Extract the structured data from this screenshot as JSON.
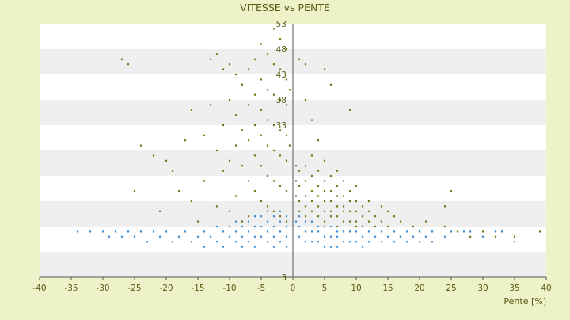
{
  "colors": {
    "background": "#eef2c9",
    "plot_band_light": "#ffffff",
    "plot_band_dark": "#efefef",
    "axis": "#555555",
    "text": "#5a5a14",
    "series_olive": "#6b7a14",
    "series_blue": "#3b8fd6"
  },
  "chart_data": {
    "type": "scatter",
    "title": "VITESSE vs PENTE",
    "xlabel": "Pente [%]",
    "ylabel": "",
    "xlim": [
      -40,
      40
    ],
    "ylim": [
      3,
      53
    ],
    "x_ticks": [
      -40,
      -35,
      -30,
      -25,
      -20,
      -15,
      -10,
      -5,
      0,
      5,
      10,
      15,
      20,
      25,
      30,
      35,
      40
    ],
    "y_ticks": [
      3,
      8,
      13,
      18,
      23,
      28,
      33,
      38,
      43,
      48,
      53
    ],
    "y_tick_labels_shown": [
      3,
      33,
      38,
      43,
      48,
      53
    ],
    "grid": "horizontal-bands",
    "legend": "none",
    "series": [
      {
        "color": "olive",
        "points": [
          [
            -27,
            46
          ],
          [
            -26,
            45
          ],
          [
            -25,
            20
          ],
          [
            -24,
            29
          ],
          [
            -22,
            27
          ],
          [
            -21,
            16
          ],
          [
            -20,
            26
          ],
          [
            -19,
            24
          ],
          [
            -18,
            20
          ],
          [
            -17,
            30
          ],
          [
            -16,
            36
          ],
          [
            -16,
            18
          ],
          [
            -15,
            14
          ],
          [
            -14,
            31
          ],
          [
            -14,
            22
          ],
          [
            -13,
            46
          ],
          [
            -13,
            37
          ],
          [
            -12,
            47
          ],
          [
            -12,
            28
          ],
          [
            -12,
            17
          ],
          [
            -11,
            44
          ],
          [
            -11,
            33
          ],
          [
            -11,
            24
          ],
          [
            -10,
            45
          ],
          [
            -10,
            38
          ],
          [
            -10,
            26
          ],
          [
            -10,
            16
          ],
          [
            -9,
            43
          ],
          [
            -9,
            35
          ],
          [
            -9,
            29
          ],
          [
            -9,
            19
          ],
          [
            -8,
            41
          ],
          [
            -8,
            32
          ],
          [
            -8,
            25
          ],
          [
            -8,
            14
          ],
          [
            -7,
            44
          ],
          [
            -7,
            37
          ],
          [
            -7,
            30
          ],
          [
            -7,
            22
          ],
          [
            -7,
            15
          ],
          [
            -6,
            46
          ],
          [
            -6,
            39
          ],
          [
            -6,
            33
          ],
          [
            -6,
            27
          ],
          [
            -6,
            20
          ],
          [
            -5,
            49
          ],
          [
            -5,
            42
          ],
          [
            -5,
            36
          ],
          [
            -5,
            31
          ],
          [
            -5,
            25
          ],
          [
            -5,
            18
          ],
          [
            -4,
            47
          ],
          [
            -4,
            40
          ],
          [
            -4,
            34
          ],
          [
            -4,
            29
          ],
          [
            -4,
            23
          ],
          [
            -4,
            17
          ],
          [
            -3,
            52
          ],
          [
            -3,
            45
          ],
          [
            -3,
            39
          ],
          [
            -3,
            33
          ],
          [
            -3,
            28
          ],
          [
            -3,
            22
          ],
          [
            -3,
            16
          ],
          [
            -2,
            50
          ],
          [
            -2,
            44
          ],
          [
            -2,
            38
          ],
          [
            -2,
            32
          ],
          [
            -2,
            27
          ],
          [
            -2,
            21
          ],
          [
            -2,
            15
          ],
          [
            -1,
            48
          ],
          [
            -1,
            42
          ],
          [
            -1,
            37
          ],
          [
            -1,
            31
          ],
          [
            -1,
            26
          ],
          [
            -1,
            20
          ],
          [
            -1,
            14
          ],
          [
            -0.5,
            40
          ],
          [
            -0.5,
            29
          ],
          [
            0.5,
            25
          ],
          [
            0.5,
            22
          ],
          [
            0.5,
            19
          ],
          [
            1,
            46
          ],
          [
            1,
            24
          ],
          [
            1,
            21
          ],
          [
            1,
            18
          ],
          [
            1,
            16
          ],
          [
            2,
            45
          ],
          [
            2,
            38
          ],
          [
            2,
            25
          ],
          [
            2,
            22
          ],
          [
            2,
            19
          ],
          [
            2,
            17
          ],
          [
            2,
            15
          ],
          [
            3,
            34
          ],
          [
            3,
            27
          ],
          [
            3,
            23
          ],
          [
            3,
            20
          ],
          [
            3,
            18
          ],
          [
            3,
            16
          ],
          [
            3,
            14
          ],
          [
            4,
            30
          ],
          [
            4,
            24
          ],
          [
            4,
            21
          ],
          [
            4,
            19
          ],
          [
            4,
            17
          ],
          [
            4,
            15
          ],
          [
            5,
            44
          ],
          [
            5,
            26
          ],
          [
            5,
            22
          ],
          [
            5,
            20
          ],
          [
            5,
            18
          ],
          [
            5,
            16
          ],
          [
            5,
            14
          ],
          [
            6,
            41
          ],
          [
            6,
            23
          ],
          [
            6,
            20
          ],
          [
            6,
            18
          ],
          [
            6,
            16
          ],
          [
            6,
            15
          ],
          [
            7,
            24
          ],
          [
            7,
            21
          ],
          [
            7,
            19
          ],
          [
            7,
            17
          ],
          [
            7,
            15
          ],
          [
            7,
            13
          ],
          [
            8,
            22
          ],
          [
            8,
            19
          ],
          [
            8,
            17
          ],
          [
            8,
            16
          ],
          [
            8,
            14
          ],
          [
            9,
            36
          ],
          [
            9,
            20
          ],
          [
            9,
            18
          ],
          [
            9,
            16
          ],
          [
            9,
            14
          ],
          [
            10,
            21
          ],
          [
            10,
            18
          ],
          [
            10,
            16
          ],
          [
            10,
            14
          ],
          [
            10,
            13
          ],
          [
            11,
            17
          ],
          [
            11,
            15
          ],
          [
            11,
            13
          ],
          [
            12,
            18
          ],
          [
            12,
            16
          ],
          [
            12,
            14
          ],
          [
            13,
            15
          ],
          [
            13,
            13
          ],
          [
            14,
            17
          ],
          [
            14,
            14
          ],
          [
            15,
            16
          ],
          [
            15,
            13
          ],
          [
            16,
            15
          ],
          [
            17,
            14
          ],
          [
            17,
            11
          ],
          [
            19,
            13
          ],
          [
            20,
            12
          ],
          [
            21,
            14
          ],
          [
            22,
            12
          ],
          [
            24,
            17
          ],
          [
            24,
            13
          ],
          [
            25,
            20
          ],
          [
            26,
            12
          ],
          [
            28,
            11
          ],
          [
            30,
            12
          ],
          [
            32,
            11
          ],
          [
            35,
            11
          ],
          [
            39,
            12
          ]
        ]
      },
      {
        "color": "blue",
        "points": [
          [
            -34,
            12
          ],
          [
            -32,
            12
          ],
          [
            -30,
            12
          ],
          [
            -29,
            11
          ],
          [
            -28,
            12
          ],
          [
            -27,
            11
          ],
          [
            -26,
            12
          ],
          [
            -25,
            11
          ],
          [
            -24,
            12
          ],
          [
            -23,
            10
          ],
          [
            -22,
            12
          ],
          [
            -21,
            11
          ],
          [
            -20,
            12
          ],
          [
            -19,
            10
          ],
          [
            -18,
            11
          ],
          [
            -17,
            12
          ],
          [
            -16,
            10
          ],
          [
            -15,
            11
          ],
          [
            -14,
            12
          ],
          [
            -14,
            9
          ],
          [
            -13,
            11
          ],
          [
            -12,
            13
          ],
          [
            -12,
            10
          ],
          [
            -11,
            12
          ],
          [
            -11,
            9
          ],
          [
            -10,
            13
          ],
          [
            -10,
            11
          ],
          [
            -9,
            14
          ],
          [
            -9,
            12
          ],
          [
            -9,
            10
          ],
          [
            -8,
            13
          ],
          [
            -8,
            11
          ],
          [
            -8,
            9
          ],
          [
            -7,
            14
          ],
          [
            -7,
            12
          ],
          [
            -7,
            10
          ],
          [
            -6,
            15
          ],
          [
            -6,
            13
          ],
          [
            -6,
            11
          ],
          [
            -6,
            9
          ],
          [
            -5,
            15
          ],
          [
            -5,
            13
          ],
          [
            -5,
            11
          ],
          [
            -4,
            16
          ],
          [
            -4,
            14
          ],
          [
            -4,
            12
          ],
          [
            -4,
            10
          ],
          [
            -3,
            15
          ],
          [
            -3,
            13
          ],
          [
            -3,
            11
          ],
          [
            -3,
            9
          ],
          [
            -2,
            16
          ],
          [
            -2,
            14
          ],
          [
            -2,
            12
          ],
          [
            -2,
            10
          ],
          [
            -1,
            15
          ],
          [
            -1,
            13
          ],
          [
            -1,
            11
          ],
          [
            -1,
            9
          ],
          [
            0.5,
            14
          ],
          [
            1,
            15
          ],
          [
            1,
            13
          ],
          [
            1,
            11
          ],
          [
            2,
            14
          ],
          [
            2,
            12
          ],
          [
            2,
            10
          ],
          [
            3,
            14
          ],
          [
            3,
            12
          ],
          [
            3,
            10
          ],
          [
            4,
            13
          ],
          [
            4,
            12
          ],
          [
            4,
            10
          ],
          [
            5,
            13
          ],
          [
            5,
            11
          ],
          [
            5,
            9
          ],
          [
            6,
            13
          ],
          [
            6,
            11
          ],
          [
            6,
            9
          ],
          [
            7,
            12
          ],
          [
            7,
            11
          ],
          [
            7,
            9
          ],
          [
            8,
            12
          ],
          [
            8,
            10
          ],
          [
            9,
            12
          ],
          [
            9,
            10
          ],
          [
            10,
            12
          ],
          [
            10,
            10
          ],
          [
            11,
            11
          ],
          [
            11,
            9
          ],
          [
            12,
            12
          ],
          [
            12,
            10
          ],
          [
            13,
            11
          ],
          [
            14,
            12
          ],
          [
            14,
            10
          ],
          [
            15,
            11
          ],
          [
            16,
            12
          ],
          [
            16,
            10
          ],
          [
            17,
            11
          ],
          [
            18,
            12
          ],
          [
            18,
            10
          ],
          [
            19,
            11
          ],
          [
            20,
            12
          ],
          [
            20,
            10
          ],
          [
            21,
            11
          ],
          [
            22,
            12
          ],
          [
            22,
            10
          ],
          [
            24,
            11
          ],
          [
            25,
            12
          ],
          [
            27,
            12
          ],
          [
            28,
            12
          ],
          [
            30,
            11
          ],
          [
            32,
            12
          ],
          [
            33,
            12
          ],
          [
            35,
            10
          ]
        ]
      }
    ]
  }
}
